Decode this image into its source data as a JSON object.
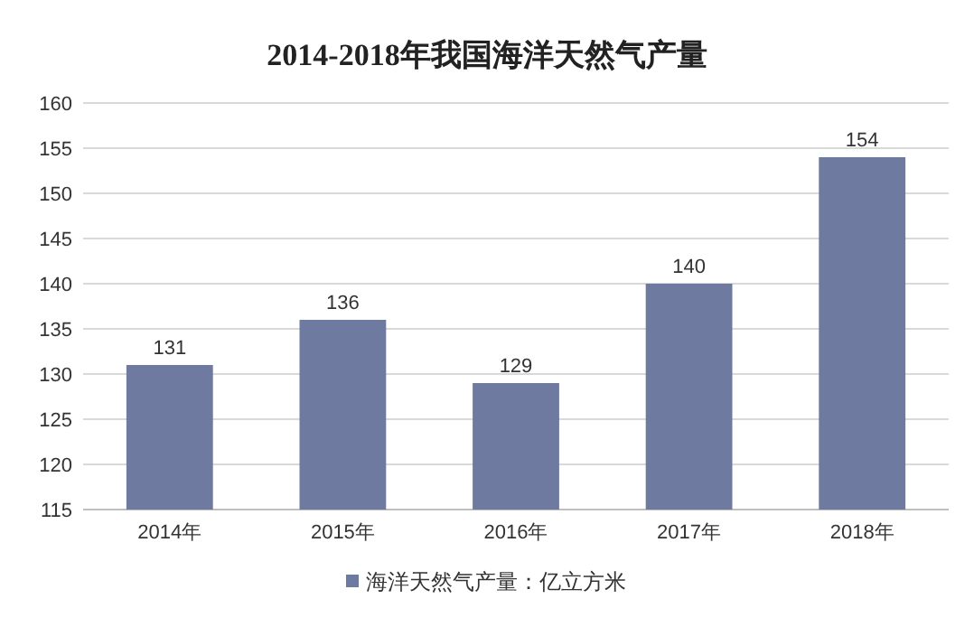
{
  "chart_data": {
    "type": "bar",
    "title": "2014-2018年我国海洋天然气产量",
    "categories": [
      "2014年",
      "2015年",
      "2016年",
      "2017年",
      "2018年"
    ],
    "series": [
      {
        "name": "海洋天然气产量：亿立方米",
        "color": "#6e7a9f",
        "values": [
          131,
          136,
          129,
          140,
          154
        ]
      }
    ],
    "ylim": [
      115,
      160
    ],
    "yticks": [
      115,
      120,
      125,
      130,
      135,
      140,
      145,
      150,
      155,
      160
    ],
    "grid": "y",
    "legend": "bottom",
    "data_labels": true
  }
}
